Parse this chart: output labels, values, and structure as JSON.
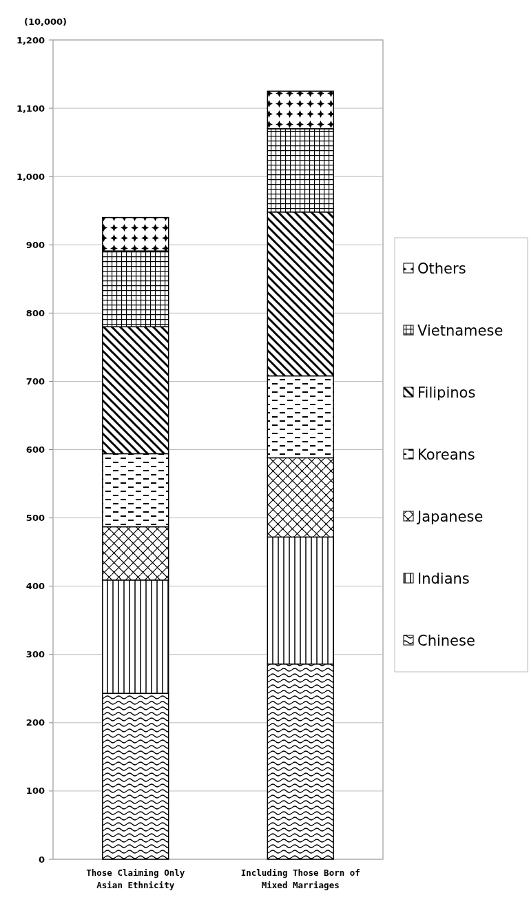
{
  "chart_data": {
    "type": "bar",
    "stacked": true,
    "ylabel": "(10,000)",
    "categories": [
      "Those Claiming Only Asian Ethnicity",
      "Including Those Born of Mixed Marriages"
    ],
    "series": [
      {
        "name": "Chinese",
        "color": "#000000",
        "values": [
          243,
          286
        ]
      },
      {
        "name": "Indians",
        "color": "#000000",
        "values": [
          166,
          186
        ]
      },
      {
        "name": "Japanese",
        "color": "#000000",
        "values": [
          78,
          116
        ]
      },
      {
        "name": "Koreans",
        "color": "#000000",
        "values": [
          107,
          120
        ]
      },
      {
        "name": "Filipinos",
        "color": "#000000",
        "values": [
          186,
          240
        ]
      },
      {
        "name": "Vietnamese",
        "color": "#000000",
        "values": [
          111,
          122
        ]
      },
      {
        "name": "Others",
        "color": "#000000",
        "values": [
          49,
          55
        ]
      }
    ],
    "ylim": [
      0,
      1200
    ],
    "yticks": [
      0,
      100,
      200,
      300,
      400,
      500,
      600,
      700,
      800,
      900,
      {
        "value": 1000,
        "label": "1,000"
      },
      {
        "value": 1100,
        "label": "1,100"
      },
      {
        "value": 1200,
        "label": "1,200"
      }
    ],
    "grid": "y",
    "legend": "right"
  }
}
